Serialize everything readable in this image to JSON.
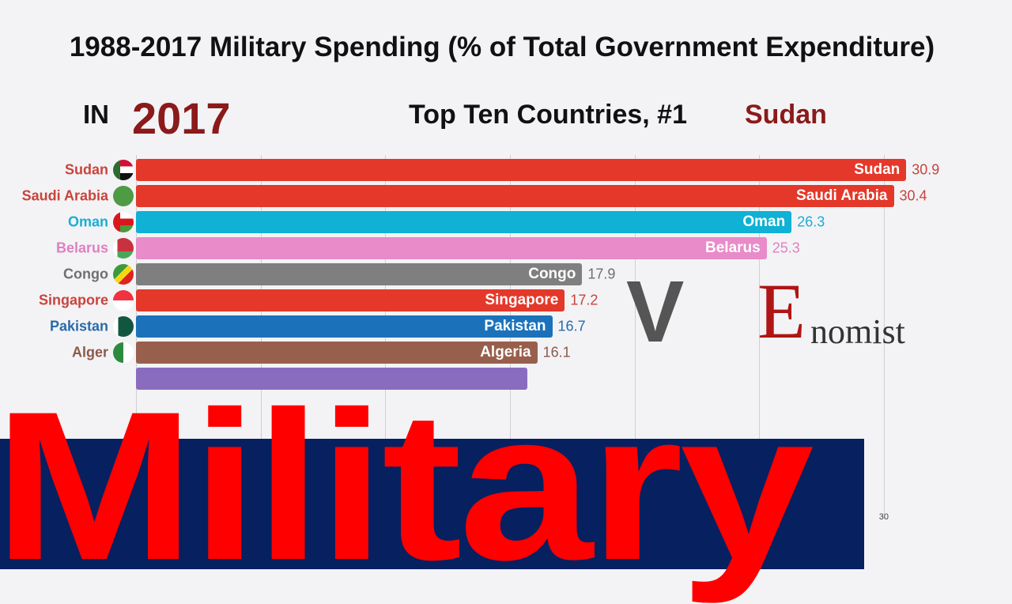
{
  "title": "1988-2017 Military Spending (% of Total Government Expenditure)",
  "in_label": "IN",
  "year": "2017",
  "top_ten_label": "Top Ten Countries, #1",
  "top_country": "Sudan",
  "overlay_text": "Military",
  "watermark_logos": [
    "V",
    "Economist"
  ],
  "watermark_visible": {
    "v": "V",
    "e": "E",
    "rest": "nomist"
  },
  "chart_data": {
    "type": "bar",
    "orientation": "horizontal",
    "title": "1988-2017 Military Spending (% of Total Government Expenditure)",
    "xlim": [
      0,
      31
    ],
    "x_ticks": [
      0,
      5,
      10,
      15,
      20,
      25,
      30
    ],
    "x_tick_labels_visible": [
      "30"
    ],
    "grid": true,
    "categories": [
      "Sudan",
      "Saudi Arabia",
      "Oman",
      "Belarus",
      "Congo",
      "Singapore",
      "Pakistan",
      "Algeria",
      ""
    ],
    "values": [
      30.9,
      30.4,
      26.3,
      25.3,
      17.9,
      17.2,
      16.7,
      16.1,
      15.7
    ],
    "value_labels": [
      "30.9",
      "30.4",
      "26.3",
      "25.3",
      "17.9",
      "17.2",
      "16.7",
      "16.1",
      ""
    ],
    "name_labels": [
      "Sudan",
      "Saudi Arabia",
      "Oman",
      "Belarus",
      "Congo",
      "Singapore",
      "Pakistan",
      "Alger",
      ""
    ],
    "colors": [
      "#e4382a",
      "#e4382a",
      "#0fb1d4",
      "#e88bc8",
      "#7f7f7f",
      "#e4382a",
      "#1b72ba",
      "#98604c",
      "#8a6cbf"
    ],
    "text_colors": [
      "#c9443a",
      "#c9443a",
      "#1aaed0",
      "#e07fc0",
      "#6f6f6f",
      "#c9443a",
      "#2a6aa8",
      "#8b5a48",
      "#7b62b0"
    ],
    "flags": [
      "sudan-flag",
      "saudi-arabia-flag",
      "oman-flag",
      "belarus-flag",
      "congo-flag",
      "singapore-flag",
      "pakistan-flag",
      "algeria-flag",
      ""
    ]
  }
}
